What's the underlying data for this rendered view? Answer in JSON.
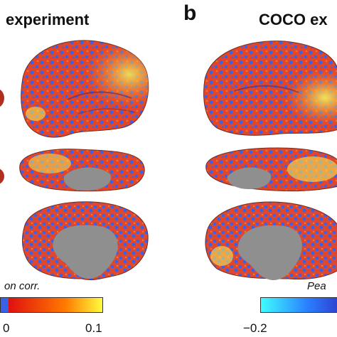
{
  "panel_a": {
    "heading": "experiment",
    "colorbar_label": "on corr.",
    "tick_min": "0",
    "tick_max": "0.1"
  },
  "panel_b": {
    "letter": "b",
    "heading": "COCO ex",
    "colorbar_label": "Pea",
    "tick_min": "−0.2"
  },
  "colors": {
    "negative": "#3a62e6",
    "positive_low": "#e8281e",
    "positive_mid": "#f28a30",
    "positive_high": "#f4f25a",
    "medial_wall": "#8f8f8f",
    "colorbar_a": [
      "#3a62e6",
      "#e01010",
      "#ff7a00",
      "#ffff40"
    ],
    "colorbar_b": [
      "#40ffff",
      "#2a80ff",
      "#3040d0"
    ]
  }
}
